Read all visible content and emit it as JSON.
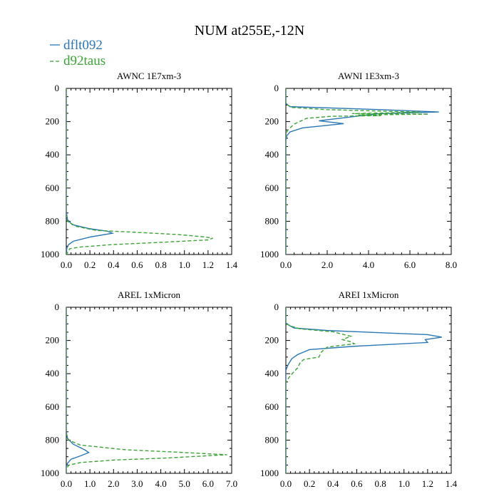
{
  "figure_title": "NUM at255E,-12N",
  "colors": {
    "dflt092": "#2a77b4",
    "d92taus": "#3aa335"
  },
  "legend": [
    {
      "name": "dflt092",
      "color": "#2a77b4",
      "dash": "solid"
    },
    {
      "name": "d92taus",
      "color": "#3aa335",
      "dash": "dashed"
    }
  ],
  "chart_data": [
    {
      "type": "line",
      "title": "AWNC  1E7xm-3",
      "xlim": [
        0,
        1.4
      ],
      "ylim": [
        1000,
        0
      ],
      "xticks": [
        0.0,
        0.2,
        0.4,
        0.6,
        0.8,
        1.0,
        1.2,
        1.4
      ],
      "xtick_labels": [
        "0.0",
        "0.2",
        "0.4",
        "0.6",
        "0.8",
        "1.0",
        "1.2",
        "1.4"
      ],
      "yticks": [
        0,
        200,
        400,
        600,
        800,
        1000
      ],
      "ytick_labels": [
        "0",
        "200",
        "400",
        "600",
        "800",
        "1000"
      ],
      "series": [
        {
          "name": "dflt092",
          "points": [
            [
              0,
              0
            ],
            [
              0,
              740
            ],
            [
              0.01,
              790
            ],
            [
              0.05,
              820
            ],
            [
              0.2,
              845
            ],
            [
              0.35,
              860
            ],
            [
              0.39,
              872
            ],
            [
              0.2,
              895
            ],
            [
              0.06,
              920
            ],
            [
              0.02,
              940
            ],
            [
              0.005,
              960
            ],
            [
              0,
              1000
            ]
          ]
        },
        {
          "name": "d92taus",
          "points": [
            [
              0,
              0
            ],
            [
              0,
              760
            ],
            [
              0.01,
              800
            ],
            [
              0.08,
              830
            ],
            [
              0.25,
              855
            ],
            [
              0.55,
              865
            ],
            [
              0.95,
              880
            ],
            [
              1.18,
              895
            ],
            [
              1.24,
              902
            ],
            [
              1.2,
              912
            ],
            [
              0.85,
              925
            ],
            [
              0.4,
              940
            ],
            [
              0.12,
              955
            ],
            [
              0.03,
              965
            ],
            [
              0,
              1000
            ]
          ]
        }
      ]
    },
    {
      "type": "line",
      "title": "AWNI  1E3xm-3",
      "xlim": [
        0,
        8
      ],
      "ylim": [
        1000,
        0
      ],
      "xticks": [
        0,
        2,
        4,
        6,
        8
      ],
      "xtick_labels": [
        "0.0",
        "2.0",
        "4.0",
        "6.0",
        "8.0"
      ],
      "yticks": [
        0,
        200,
        400,
        600,
        800,
        1000
      ],
      "ytick_labels": [
        "0",
        "200",
        "400",
        "600",
        "800",
        "1000"
      ],
      "series": [
        {
          "name": "dflt092",
          "points": [
            [
              0,
              0
            ],
            [
              0,
              90
            ],
            [
              0.2,
              110
            ],
            [
              4.6,
              128
            ],
            [
              7.4,
              142
            ],
            [
              4.5,
              152
            ],
            [
              3.6,
              165
            ],
            [
              1.6,
              195
            ],
            [
              2.8,
              212
            ],
            [
              0.8,
              238
            ],
            [
              0.2,
              262
            ],
            [
              0.05,
              285
            ],
            [
              0,
              310
            ],
            [
              0,
              1000
            ]
          ]
        },
        {
          "name": "d92taus",
          "points": [
            [
              0,
              0
            ],
            [
              0,
              95
            ],
            [
              0.3,
              115
            ],
            [
              2.0,
              128
            ],
            [
              6.5,
              143
            ],
            [
              3.2,
              152
            ],
            [
              6.9,
              155
            ],
            [
              3.5,
              160
            ],
            [
              4.6,
              164
            ],
            [
              2.2,
              168
            ],
            [
              1.0,
              180
            ],
            [
              0.4,
              215
            ],
            [
              0.1,
              250
            ],
            [
              0.02,
              270
            ],
            [
              0,
              295
            ],
            [
              0,
              1000
            ]
          ]
        }
      ]
    },
    {
      "type": "line",
      "title": "AREL  1xMicron",
      "xlim": [
        0,
        7
      ],
      "ylim": [
        1000,
        0
      ],
      "xticks": [
        0,
        1,
        2,
        3,
        4,
        5,
        6,
        7
      ],
      "xtick_labels": [
        "0.0",
        "1.0",
        "2.0",
        "3.0",
        "4.0",
        "5.0",
        "6.0",
        "7.0"
      ],
      "yticks": [
        0,
        200,
        400,
        600,
        800,
        1000
      ],
      "ytick_labels": [
        "0",
        "200",
        "400",
        "600",
        "800",
        "1000"
      ],
      "series": [
        {
          "name": "dflt092",
          "points": [
            [
              0,
              0
            ],
            [
              0,
              750
            ],
            [
              0.05,
              790
            ],
            [
              0.3,
              825
            ],
            [
              0.8,
              860
            ],
            [
              0.95,
              875
            ],
            [
              0.6,
              895
            ],
            [
              0.2,
              915
            ],
            [
              0.05,
              940
            ],
            [
              0,
              960
            ],
            [
              0,
              1000
            ]
          ]
        },
        {
          "name": "d92taus",
          "points": [
            [
              0,
              0
            ],
            [
              0,
              760
            ],
            [
              0.1,
              800
            ],
            [
              0.6,
              830
            ],
            [
              2.5,
              858
            ],
            [
              4.6,
              872
            ],
            [
              6.8,
              888
            ],
            [
              4.2,
              908
            ],
            [
              2.0,
              920
            ],
            [
              0.6,
              935
            ],
            [
              0.12,
              950
            ],
            [
              0,
              970
            ],
            [
              0,
              1000
            ]
          ]
        }
      ]
    },
    {
      "type": "line",
      "title": "AREI  1xMicron",
      "xlim": [
        0,
        1.4
      ],
      "ylim": [
        1000,
        0
      ],
      "xticks": [
        0.0,
        0.2,
        0.4,
        0.6,
        0.8,
        1.0,
        1.2,
        1.4
      ],
      "xtick_labels": [
        "0.0",
        "0.2",
        "0.4",
        "0.6",
        "0.8",
        "1.0",
        "1.2",
        "1.4"
      ],
      "yticks": [
        0,
        200,
        400,
        600,
        800,
        1000
      ],
      "ytick_labels": [
        "0",
        "200",
        "400",
        "600",
        "800",
        "1000"
      ],
      "series": [
        {
          "name": "dflt092",
          "points": [
            [
              0,
              0
            ],
            [
              0,
              95
            ],
            [
              0.03,
              110
            ],
            [
              0.07,
              125
            ],
            [
              0.35,
              140
            ],
            [
              1.2,
              165
            ],
            [
              1.32,
              180
            ],
            [
              1.18,
              195
            ],
            [
              1.2,
              212
            ],
            [
              0.58,
              235
            ],
            [
              0.2,
              255
            ],
            [
              0.1,
              285
            ],
            [
              0.05,
              310
            ],
            [
              0.02,
              345
            ],
            [
              0,
              380
            ],
            [
              0,
              1000
            ]
          ]
        },
        {
          "name": "d92taus",
          "points": [
            [
              0,
              0
            ],
            [
              0,
              100
            ],
            [
              0.05,
              115
            ],
            [
              0.12,
              130
            ],
            [
              0.4,
              148
            ],
            [
              0.55,
              175
            ],
            [
              0.48,
              195
            ],
            [
              0.55,
              208
            ],
            [
              0.58,
              220
            ],
            [
              0.35,
              240
            ],
            [
              0.3,
              270
            ],
            [
              0.28,
              300
            ],
            [
              0.15,
              315
            ],
            [
              0.12,
              335
            ],
            [
              0.1,
              365
            ],
            [
              0.06,
              395
            ],
            [
              0.03,
              420
            ],
            [
              0,
              450
            ],
            [
              0,
              1000
            ]
          ]
        }
      ]
    }
  ]
}
